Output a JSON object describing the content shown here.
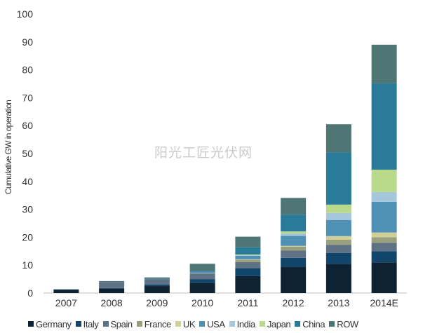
{
  "chart_data": {
    "type": "bar",
    "stacked": true,
    "ylabel": "Cumulative GW in operation",
    "ylim": [
      0,
      100
    ],
    "yticks": [
      0,
      10,
      20,
      30,
      40,
      50,
      60,
      70,
      80,
      90,
      100
    ],
    "grid": false,
    "legend_position": "bottom",
    "categories": [
      "2007",
      "2008",
      "2009",
      "2010",
      "2011",
      "2012",
      "2013",
      "2014E"
    ],
    "series": [
      {
        "name": "Germany",
        "color": "#0d2233",
        "values": [
          1.2,
          1.6,
          2.5,
          3.7,
          6.1,
          9.4,
          10.5,
          11.0
        ]
      },
      {
        "name": "Italy",
        "color": "#12456a",
        "values": [
          0.05,
          0.2,
          0.5,
          1.3,
          2.8,
          3.2,
          3.9,
          4.0
        ]
      },
      {
        "name": "Spain",
        "color": "#5f7184",
        "values": [
          0.05,
          2.1,
          1.9,
          1.9,
          2.2,
          2.6,
          2.9,
          3.0
        ]
      },
      {
        "name": "France",
        "color": "#9a9f7e",
        "values": [
          0,
          0,
          0,
          0.2,
          0.8,
          1.4,
          1.8,
          2.0
        ]
      },
      {
        "name": "UK",
        "color": "#d3cf98",
        "values": [
          0,
          0,
          0,
          0,
          0.2,
          0.3,
          1.3,
          1.7
        ]
      },
      {
        "name": "USA",
        "color": "#4e91b5",
        "values": [
          0.05,
          0.1,
          0.2,
          0.5,
          1.3,
          3.6,
          5.8,
          11.0
        ]
      },
      {
        "name": "India",
        "color": "#a6c6dc",
        "values": [
          0,
          0,
          0,
          0,
          0.1,
          0.9,
          2.5,
          3.5
        ]
      },
      {
        "name": "Japan",
        "color": "#b9d98b",
        "values": [
          0,
          0,
          0,
          0,
          0.3,
          0.7,
          3.0,
          8.0
        ]
      },
      {
        "name": "China",
        "color": "#2a7a99",
        "values": [
          0,
          0,
          0,
          0.3,
          2.6,
          6.0,
          18.7,
          31.0
        ]
      },
      {
        "name": "ROW",
        "color": "#4d7675",
        "values": [
          0.05,
          0.3,
          0.5,
          2.6,
          3.8,
          6.0,
          10.1,
          13.8
        ]
      }
    ]
  },
  "watermark": "阳光工匠光伏网"
}
